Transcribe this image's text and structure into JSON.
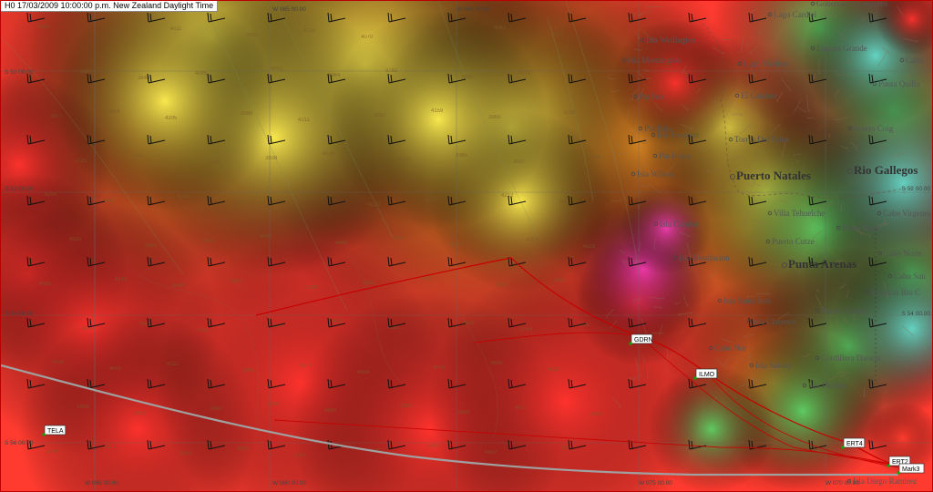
{
  "status": {
    "text": "H0 17/03/2009 10:00:00 p.m. New Zealand Daylight Time"
  },
  "colors": {
    "red": "#ff3b30",
    "orange": "#ff9a1e",
    "yellow": "#ffe94a",
    "green": "#55d06a",
    "cyan": "#5fe0d0",
    "magenta": "#ff3cc8",
    "route": "#c80000",
    "greatCircle": "#a0a0a0",
    "grid": "#666666"
  },
  "coord_labels": {
    "lon_top": [
      "W 065 00.00",
      "W 060 00.00"
    ],
    "lon_bottom": [
      "W 085 00.00",
      "W 080 00.00",
      "W 075 00.00",
      "W 070 00.00"
    ],
    "lat_left": [
      "S 50 00.00",
      "S 52 00.00",
      "S 54 00.00",
      "S 56 00.00"
    ],
    "lat_right": [
      "S 52 00.00",
      "S 54 00.00"
    ]
  },
  "places": [
    {
      "name": "Gobernador Gregores",
      "size": "small"
    },
    {
      "name": "Lago Cardiel",
      "size": "small"
    },
    {
      "name": "Isla Wellington",
      "size": "small"
    },
    {
      "name": "Laguna Grande",
      "size": "small"
    },
    {
      "name": "Isla Mornington",
      "size": "small"
    },
    {
      "name": "Lago Viedma",
      "size": "small"
    },
    {
      "name": "Cabo",
      "size": "small"
    },
    {
      "name": "Punta Quilla",
      "size": "small"
    },
    {
      "name": "El Calafate",
      "size": "small"
    },
    {
      "name": "Pta Fox",
      "size": "small"
    },
    {
      "name": "Pta Baja",
      "size": "small"
    },
    {
      "name": "Torres Del Paine",
      "size": "small"
    },
    {
      "name": "Puerto Coig",
      "size": "small"
    },
    {
      "name": "Isla Hanover",
      "size": "small"
    },
    {
      "name": "Pta Brava",
      "size": "small"
    },
    {
      "name": "Puerto Natales",
      "size": "big"
    },
    {
      "name": "Rio Gallegos",
      "size": "big"
    },
    {
      "name": "Isla Wilson",
      "size": "small"
    },
    {
      "name": "Villa Tehuelche",
      "size": "small"
    },
    {
      "name": "Isla Cóndor",
      "size": "small"
    },
    {
      "name": "Cabo Virgenes",
      "size": "small"
    },
    {
      "name": "Punta Baxa",
      "size": "small"
    },
    {
      "name": "Puerto Cutze",
      "size": "small"
    },
    {
      "name": "Cabo Norte",
      "size": "small"
    },
    {
      "name": "Punta Arenas",
      "size": "big"
    },
    {
      "name": "Isla Desolacion",
      "size": "small"
    },
    {
      "name": "Cabo San",
      "size": "small"
    },
    {
      "name": "Isla Santa Ines",
      "size": "small"
    },
    {
      "name": "Estancia Rio C",
      "size": "small"
    },
    {
      "name": "Puerto Yartou",
      "size": "small"
    },
    {
      "name": "Isla Clarence",
      "size": "small"
    },
    {
      "name": "Cabo Nor",
      "size": "small"
    },
    {
      "name": "Cordillera Darwin",
      "size": "small"
    },
    {
      "name": "Isla Sidney",
      "size": "small"
    },
    {
      "name": "Isla Phillips",
      "size": "small"
    },
    {
      "name": "Isla Diego Ramirez",
      "size": "small"
    }
  ],
  "waypoints": [
    {
      "name": "TELA"
    },
    {
      "name": "GDRN"
    },
    {
      "name": "ILMO"
    },
    {
      "name": "ERT4"
    },
    {
      "name": "ERT2"
    },
    {
      "name": "Mark3"
    }
  ],
  "depths": [
    "4380",
    "4273",
    "4111",
    "3928",
    "4115",
    "4070",
    "3870",
    "4087",
    "4107",
    "3840",
    "3848",
    "4005",
    "4001",
    "3984",
    "3782",
    "3688",
    "3751",
    "4124",
    "3877",
    "3804",
    "4205",
    "3880",
    "4211",
    "3952",
    "4159",
    "3983",
    "3790",
    "2715",
    "3745",
    "3748",
    "3938",
    "4130",
    "4116",
    "3965",
    "3927",
    "4448",
    "4204",
    "3849",
    "4252",
    "3880",
    "4123",
    "4120",
    "4033",
    "4212",
    "3899",
    "4525",
    "3891",
    "4290",
    "4044",
    "4496",
    "3905",
    "4239",
    "4217",
    "4323",
    "4050",
    "4215",
    "4444",
    "3865",
    "4296",
    "4490",
    "3852",
    "3925",
    "4383",
    "4100",
    "3981",
    "4111",
    "3742",
    "4416",
    "4261",
    "4321",
    "3764",
    "4202",
    "4335",
    "4001",
    "4111",
    "3961",
    "4576",
    "4594",
    "4400",
    "3805",
    "4520",
    "3864",
    "3975",
    "3900",
    "3240",
    "4400",
    "4283",
    "3854",
    "4017",
    "4300",
    "3756",
    "2213",
    "3353",
    "4650",
    "2242",
    "5087",
    "5084",
    "4402",
    "3815"
  ]
}
